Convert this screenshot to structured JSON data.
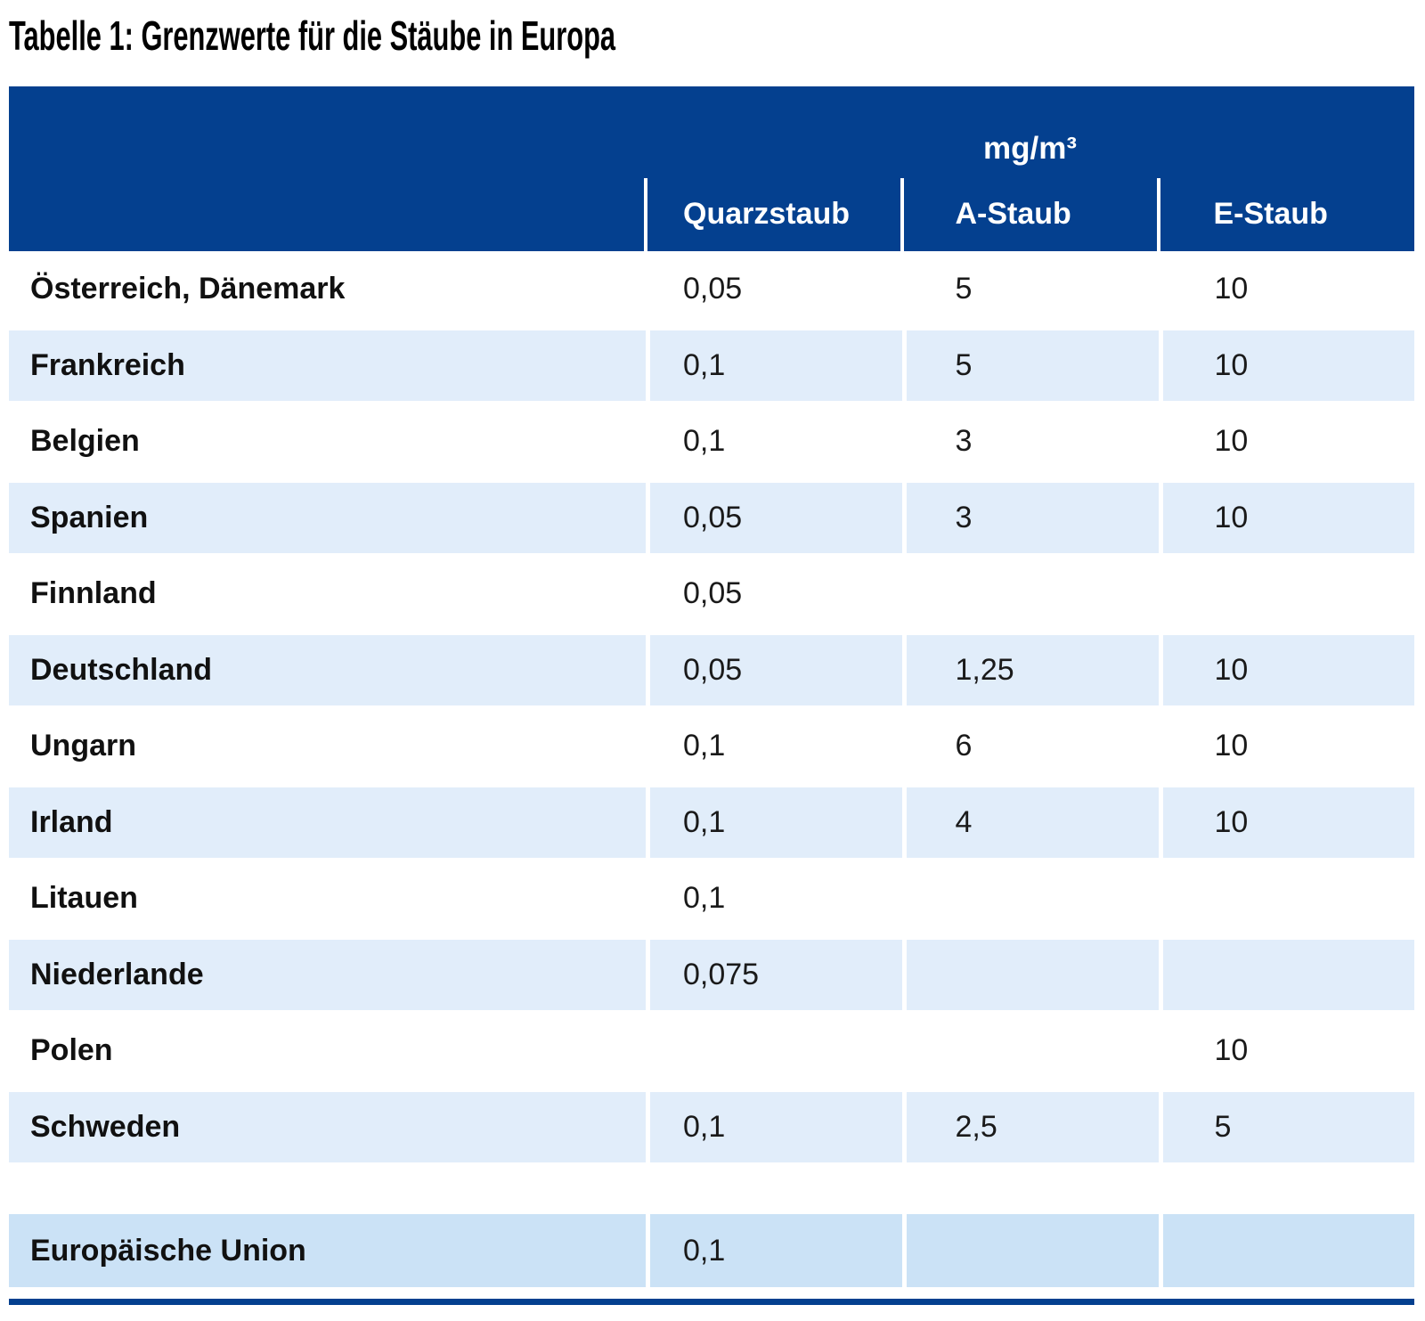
{
  "title": "Tabelle 1: Grenzwerte für die Stäube in Europa",
  "table": {
    "unit_header": "mg/m³",
    "columns": [
      "Quarzstaub",
      "A-Staub",
      "E-Staub"
    ],
    "rows": [
      {
        "country": "Österreich, Dänemark",
        "quarzstaub": "0,05",
        "a_staub": "5",
        "e_staub": "10"
      },
      {
        "country": "Frankreich",
        "quarzstaub": "0,1",
        "a_staub": "5",
        "e_staub": "10"
      },
      {
        "country": "Belgien",
        "quarzstaub": "0,1",
        "a_staub": "3",
        "e_staub": "10"
      },
      {
        "country": "Spanien",
        "quarzstaub": "0,05",
        "a_staub": "3",
        "e_staub": "10"
      },
      {
        "country": "Finnland",
        "quarzstaub": "0,05",
        "a_staub": "",
        "e_staub": ""
      },
      {
        "country": "Deutschland",
        "quarzstaub": "0,05",
        "a_staub": "1,25",
        "e_staub": "10"
      },
      {
        "country": "Ungarn",
        "quarzstaub": "0,1",
        "a_staub": "6",
        "e_staub": "10"
      },
      {
        "country": "Irland",
        "quarzstaub": "0,1",
        "a_staub": "4",
        "e_staub": "10"
      },
      {
        "country": "Litauen",
        "quarzstaub": "0,1",
        "a_staub": "",
        "e_staub": ""
      },
      {
        "country": "Niederlande",
        "quarzstaub": "0,075",
        "a_staub": "",
        "e_staub": ""
      },
      {
        "country": "Polen",
        "quarzstaub": "",
        "a_staub": "",
        "e_staub": "10"
      },
      {
        "country": "Schweden",
        "quarzstaub": "0,1",
        "a_staub": "2,5",
        "e_staub": "5"
      }
    ],
    "footer_row": {
      "country": "Europäische Union",
      "quarzstaub": "0,1",
      "a_staub": "",
      "e_staub": ""
    }
  },
  "colors": {
    "header_blue": "#04408f",
    "row_blue": "#e1edfa",
    "eu_row_blue": "#cbe2f6",
    "rule_blue": "#04408f",
    "header_text": "#ffffff",
    "body_text": "#1a1a1a"
  }
}
